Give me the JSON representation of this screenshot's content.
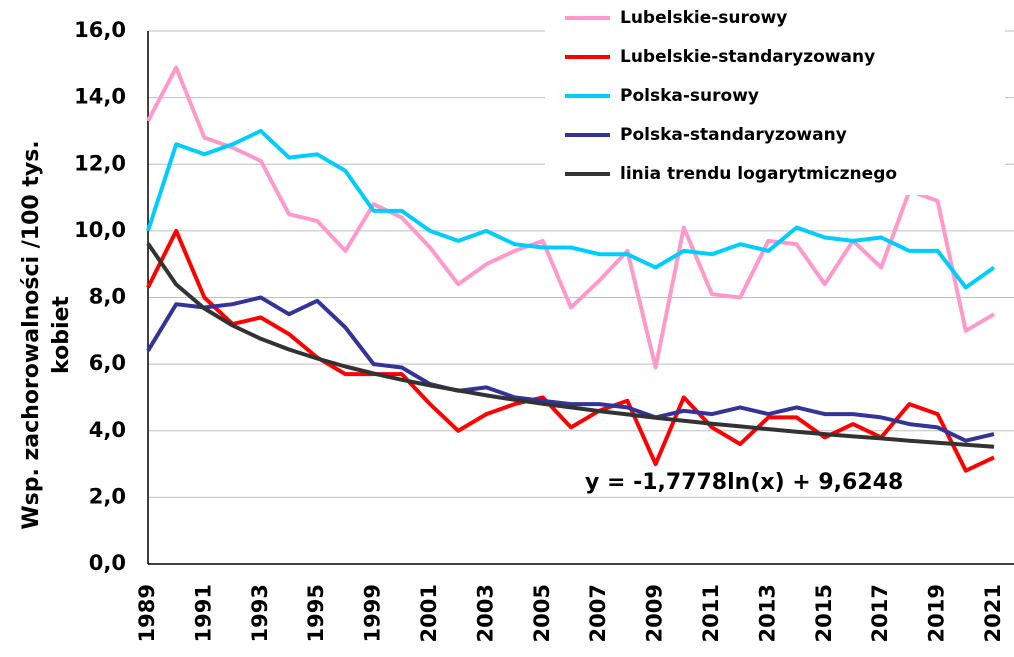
{
  "chart_data": {
    "type": "line",
    "y_label": [
      "Wsp. zachorowalności /100 tys.",
      "kobiet"
    ],
    "annotation": "y = -1,7778ln(x) + 9,6248",
    "categories": [
      "1989",
      null,
      "1991",
      null,
      "1993",
      null,
      "1995",
      null,
      "1999",
      null,
      "2001",
      null,
      "2003",
      null,
      "2005",
      null,
      "2007",
      null,
      "2009",
      null,
      "2011",
      null,
      "2013",
      null,
      "2015",
      null,
      "2017",
      null,
      "2019",
      null,
      "2021"
    ],
    "ylim": [
      0,
      16
    ],
    "yticks": [
      {
        "value": 0,
        "label": "0,0"
      },
      {
        "value": 2,
        "label": "2,0"
      },
      {
        "value": 4,
        "label": "4,0"
      },
      {
        "value": 6,
        "label": "6,0"
      },
      {
        "value": 8,
        "label": "8,0"
      },
      {
        "value": 10,
        "label": "10,0"
      },
      {
        "value": 12,
        "label": "12,0"
      },
      {
        "value": 14,
        "label": "14,0"
      },
      {
        "value": 16,
        "label": "16,0"
      }
    ],
    "grid": true,
    "legend": "top-right",
    "series": [
      {
        "name": "Lubelskie-surowy",
        "color": "#ff99cc",
        "values": [
          13.3,
          14.9,
          12.8,
          12.5,
          12.1,
          10.5,
          10.3,
          9.4,
          10.8,
          10.4,
          9.5,
          8.4,
          9.0,
          9.4,
          9.7,
          7.7,
          8.5,
          9.4,
          5.9,
          10.1,
          8.1,
          8.0,
          9.7,
          9.6,
          8.4,
          9.7,
          8.9,
          11.2,
          10.9,
          7.0,
          7.5
        ]
      },
      {
        "name": "Lubelskie-standaryzowany",
        "color": "#ff0000",
        "values": [
          8.3,
          10.0,
          8.0,
          7.2,
          7.4,
          6.9,
          6.2,
          5.7,
          5.7,
          5.7,
          4.8,
          4.0,
          4.5,
          4.8,
          5.0,
          4.1,
          4.6,
          4.9,
          3.0,
          5.0,
          4.1,
          3.6,
          4.4,
          4.4,
          3.8,
          4.2,
          3.8,
          4.8,
          4.5,
          2.8,
          3.2
        ]
      },
      {
        "name": "Polska-surowy",
        "color": "#00ccff",
        "values": [
          10.0,
          12.6,
          12.3,
          12.6,
          13.0,
          12.2,
          12.3,
          11.8,
          10.6,
          10.6,
          10.0,
          9.7,
          10.0,
          9.6,
          9.5,
          9.5,
          9.3,
          9.3,
          8.9,
          9.4,
          9.3,
          9.6,
          9.4,
          10.1,
          9.8,
          9.7,
          9.8,
          9.4,
          9.4,
          8.3,
          8.9
        ]
      },
      {
        "name": "Polska-standaryzowany",
        "color": "#333399",
        "values": [
          6.4,
          7.8,
          7.7,
          7.8,
          8.0,
          7.5,
          7.9,
          7.1,
          6.0,
          5.9,
          5.4,
          5.2,
          5.3,
          5.0,
          4.9,
          4.8,
          4.8,
          4.7,
          4.4,
          4.6,
          4.5,
          4.7,
          4.5,
          4.7,
          4.5,
          4.5,
          4.4,
          4.2,
          4.1,
          3.7,
          3.9
        ]
      },
      {
        "name": "linia trendu logarytmicznego",
        "color": "#333333",
        "values": [
          9.62,
          8.39,
          7.67,
          7.16,
          6.76,
          6.44,
          6.17,
          5.93,
          5.72,
          5.53,
          5.36,
          5.21,
          5.06,
          4.93,
          4.81,
          4.7,
          4.59,
          4.49,
          4.39,
          4.3,
          4.21,
          4.13,
          4.05,
          3.97,
          3.9,
          3.83,
          3.77,
          3.7,
          3.64,
          3.58,
          3.52
        ]
      }
    ]
  }
}
